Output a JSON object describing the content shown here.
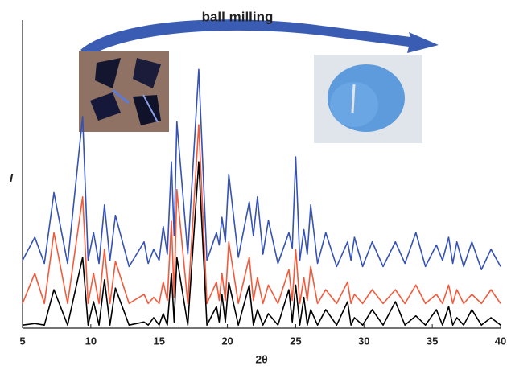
{
  "chart_data": {
    "type": "line",
    "annotation": "ball milling",
    "xlabel": "2θ",
    "ylabel": "I",
    "x": [
      5,
      5.9,
      6.6,
      7.3,
      8.3,
      9.4,
      9.8,
      10.2,
      10.6,
      11.0,
      11.4,
      11.8,
      12.8,
      13.9,
      14.2,
      14.6,
      15.0,
      15.3,
      15.6,
      15.9,
      16.1,
      16.3,
      17.1,
      17.9,
      18.5,
      19.2,
      19.4,
      19.6,
      19.85,
      20.1,
      20.8,
      21.6,
      21.9,
      22.2,
      22.6,
      23.0,
      23.7,
      24.5,
      24.75,
      25.0,
      25.3,
      25.6,
      25.85,
      26.1,
      26.6,
      27.2,
      28.0,
      28.8,
      29.05,
      29.3,
      29.9,
      30.6,
      31.4,
      32.3,
      33.0,
      33.8,
      34.5,
      35.3,
      35.75,
      36.2,
      36.5,
      36.8,
      37.3,
      37.9,
      38.6,
      39.3,
      40
    ],
    "series": [
      {
        "color": "#3552b4",
        "values": [
          22,
          29.5,
          21,
          44,
          21,
          68.7,
          22,
          31,
          21,
          40,
          22,
          36.6,
          20,
          28,
          21,
          25.6,
          22,
          33,
          24,
          54,
          30,
          67,
          24,
          84,
          22,
          31,
          27,
          36,
          28,
          50,
          23,
          41,
          30,
          42.6,
          24,
          35,
          21,
          31,
          26,
          55.6,
          22,
          32,
          24,
          40,
          21,
          31,
          20,
          28,
          22,
          29.5,
          20,
          28,
          20,
          28,
          21,
          31,
          20,
          27,
          22,
          29.5,
          21,
          28,
          20,
          28,
          19,
          25.6,
          20
        ]
      },
      {
        "color": "#f25a3c",
        "values": [
          8,
          17.8,
          8,
          31,
          8,
          42.6,
          8,
          17.8,
          8,
          25.6,
          8,
          21.7,
          8,
          11,
          8,
          10,
          8,
          15,
          9,
          34.7,
          10,
          45,
          8,
          66,
          8,
          15,
          9,
          17.8,
          9,
          28,
          8,
          23,
          9,
          16.4,
          8,
          14,
          8,
          19,
          9,
          25.6,
          8,
          16.4,
          9,
          20,
          8,
          12.5,
          8,
          15,
          8,
          11,
          8,
          12.5,
          8,
          12.5,
          8,
          14,
          8,
          11,
          8,
          14,
          8,
          12.5,
          8,
          11,
          8,
          12.5,
          8
        ]
      },
      {
        "color": "#000000",
        "values": [
          1,
          1.5,
          1,
          12.5,
          1,
          23,
          1,
          8.6,
          1,
          15.7,
          1,
          13,
          1,
          2,
          1,
          3.4,
          1,
          4.7,
          1,
          17.8,
          2,
          23,
          1,
          54,
          1,
          7,
          2,
          11,
          2,
          15,
          1,
          14,
          1,
          6,
          1,
          4.7,
          1,
          12.5,
          2,
          14,
          1,
          10,
          1,
          6,
          1,
          6,
          1,
          8.6,
          1,
          3.4,
          1,
          6,
          1,
          8.6,
          1,
          4,
          1,
          6,
          1,
          7,
          1,
          3.4,
          1,
          6,
          1,
          3.4,
          1
        ]
      }
    ],
    "xlim": [
      5,
      40
    ],
    "xticks": [
      5,
      10,
      15,
      20,
      25,
      30,
      35,
      40
    ],
    "ylim": [
      0,
      100
    ]
  }
}
